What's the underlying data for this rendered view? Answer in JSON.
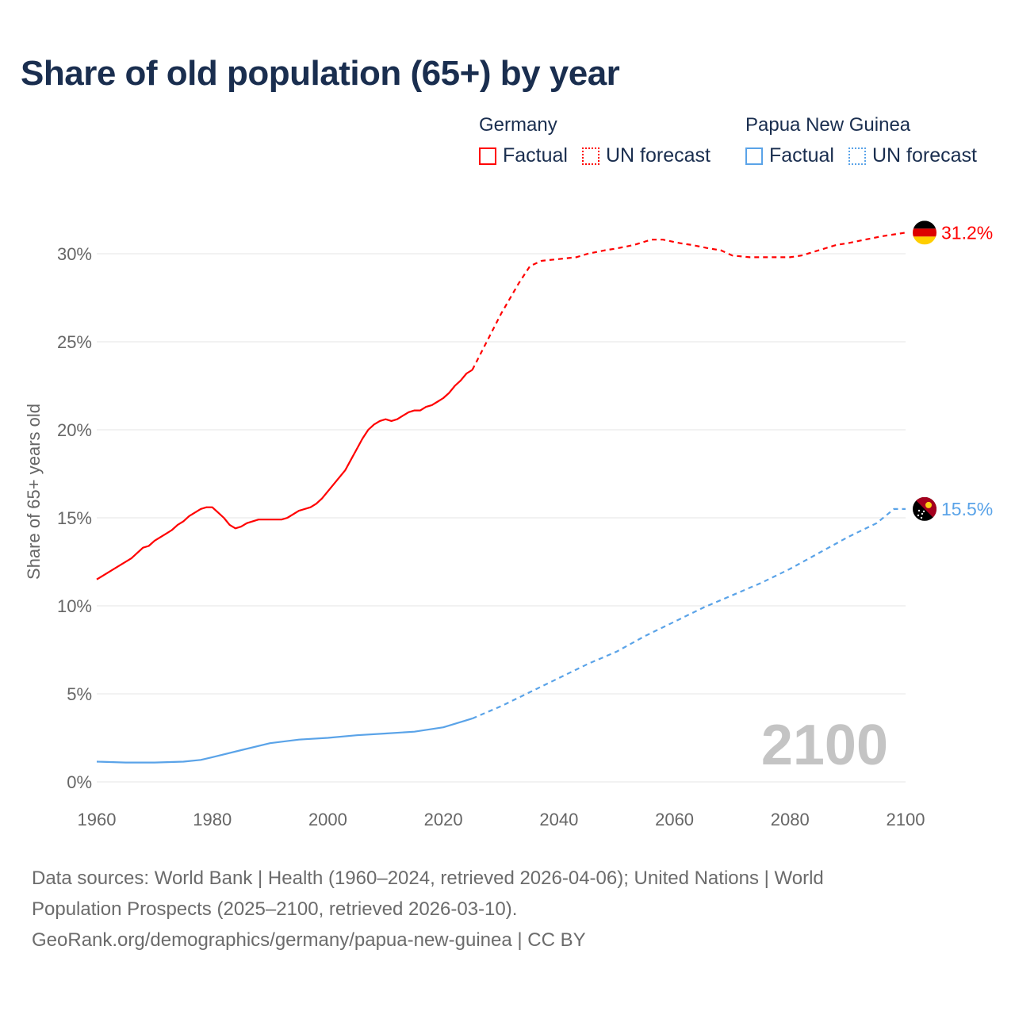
{
  "title": "Share of old population (65+) by year",
  "legend": [
    {
      "name": "Germany",
      "color": "#ff0000",
      "factual_label": "Factual",
      "forecast_label": "UN forecast"
    },
    {
      "name": "Papua New Guinea",
      "color": "#5aa3e8",
      "factual_label": "Factual",
      "forecast_label": "UN forecast"
    }
  ],
  "chart_data": {
    "type": "line",
    "title": "Share of old population (65+) by year",
    "ylabel": "Share of 65+ years old",
    "xlabel": "",
    "xlim": [
      1960,
      2100
    ],
    "ylim": [
      0,
      30
    ],
    "x_ticks": [
      "1960",
      "1980",
      "2000",
      "2020",
      "2040",
      "2060",
      "2080",
      "2100"
    ],
    "y_ticks": [
      "0%",
      "5%",
      "10%",
      "15%",
      "20%",
      "25%",
      "30%"
    ],
    "grid": true,
    "year_watermark": "2100",
    "series": [
      {
        "name": "Germany",
        "color": "#ff0000",
        "end_label": "31.2%",
        "factual": [
          [
            1960,
            11.5
          ],
          [
            1962,
            11.9
          ],
          [
            1964,
            12.3
          ],
          [
            1966,
            12.7
          ],
          [
            1968,
            13.3
          ],
          [
            1969,
            13.4
          ],
          [
            1970,
            13.7
          ],
          [
            1972,
            14.1
          ],
          [
            1973,
            14.3
          ],
          [
            1974,
            14.6
          ],
          [
            1975,
            14.8
          ],
          [
            1976,
            15.1
          ],
          [
            1978,
            15.5
          ],
          [
            1979,
            15.6
          ],
          [
            1980,
            15.6
          ],
          [
            1981,
            15.3
          ],
          [
            1982,
            15.0
          ],
          [
            1983,
            14.6
          ],
          [
            1984,
            14.4
          ],
          [
            1985,
            14.5
          ],
          [
            1986,
            14.7
          ],
          [
            1988,
            14.9
          ],
          [
            1990,
            14.9
          ],
          [
            1992,
            14.9
          ],
          [
            1993,
            15.0
          ],
          [
            1995,
            15.4
          ],
          [
            1997,
            15.6
          ],
          [
            1998,
            15.8
          ],
          [
            1999,
            16.1
          ],
          [
            2000,
            16.5
          ],
          [
            2001,
            16.9
          ],
          [
            2002,
            17.3
          ],
          [
            2003,
            17.7
          ],
          [
            2004,
            18.3
          ],
          [
            2005,
            18.9
          ],
          [
            2006,
            19.5
          ],
          [
            2007,
            20.0
          ],
          [
            2008,
            20.3
          ],
          [
            2009,
            20.5
          ],
          [
            2010,
            20.6
          ],
          [
            2011,
            20.5
          ],
          [
            2012,
            20.6
          ],
          [
            2013,
            20.8
          ],
          [
            2014,
            21.0
          ],
          [
            2015,
            21.1
          ],
          [
            2016,
            21.1
          ],
          [
            2017,
            21.3
          ],
          [
            2018,
            21.4
          ],
          [
            2019,
            21.6
          ],
          [
            2020,
            21.8
          ],
          [
            2021,
            22.1
          ],
          [
            2022,
            22.5
          ],
          [
            2023,
            22.8
          ],
          [
            2024,
            23.2
          ],
          [
            2025,
            23.4
          ]
        ],
        "forecast": [
          [
            2025,
            23.4
          ],
          [
            2030,
            26.6
          ],
          [
            2033,
            28.3
          ],
          [
            2035,
            29.3
          ],
          [
            2037,
            29.6
          ],
          [
            2040,
            29.7
          ],
          [
            2043,
            29.8
          ],
          [
            2045,
            30.0
          ],
          [
            2048,
            30.2
          ],
          [
            2050,
            30.3
          ],
          [
            2053,
            30.5
          ],
          [
            2056,
            30.8
          ],
          [
            2058,
            30.8
          ],
          [
            2061,
            30.6
          ],
          [
            2063,
            30.5
          ],
          [
            2066,
            30.3
          ],
          [
            2068,
            30.2
          ],
          [
            2070,
            29.9
          ],
          [
            2073,
            29.8
          ],
          [
            2076,
            29.8
          ],
          [
            2080,
            29.8
          ],
          [
            2082,
            29.9
          ],
          [
            2085,
            30.2
          ],
          [
            2088,
            30.5
          ],
          [
            2090,
            30.6
          ],
          [
            2093,
            30.8
          ],
          [
            2096,
            31.0
          ],
          [
            2098,
            31.1
          ],
          [
            2100,
            31.2
          ]
        ]
      },
      {
        "name": "Papua New Guinea",
        "color": "#5aa3e8",
        "end_label": "15.5%",
        "factual": [
          [
            1960,
            1.15
          ],
          [
            1965,
            1.1
          ],
          [
            1970,
            1.1
          ],
          [
            1975,
            1.15
          ],
          [
            1978,
            1.25
          ],
          [
            1980,
            1.4
          ],
          [
            1985,
            1.8
          ],
          [
            1990,
            2.2
          ],
          [
            1995,
            2.4
          ],
          [
            2000,
            2.5
          ],
          [
            2005,
            2.65
          ],
          [
            2010,
            2.75
          ],
          [
            2015,
            2.85
          ],
          [
            2020,
            3.1
          ],
          [
            2024,
            3.5
          ],
          [
            2025,
            3.6
          ]
        ],
        "forecast": [
          [
            2025,
            3.6
          ],
          [
            2030,
            4.3
          ],
          [
            2035,
            5.1
          ],
          [
            2040,
            5.9
          ],
          [
            2045,
            6.7
          ],
          [
            2050,
            7.4
          ],
          [
            2055,
            8.3
          ],
          [
            2060,
            9.1
          ],
          [
            2065,
            9.9
          ],
          [
            2070,
            10.6
          ],
          [
            2075,
            11.3
          ],
          [
            2080,
            12.1
          ],
          [
            2085,
            13.0
          ],
          [
            2090,
            13.9
          ],
          [
            2095,
            14.7
          ],
          [
            2098,
            15.5
          ],
          [
            2100,
            15.5
          ]
        ]
      }
    ]
  },
  "footer": {
    "line1": "Data sources: World Bank | Health (1960–2024, retrieved 2026-04-06); United Nations | World",
    "line2": "Population Prospects (2025–2100, retrieved 2026-03-10).",
    "line3": "GeoRank.org/demographics/germany/papua-new-guinea | CC BY"
  }
}
